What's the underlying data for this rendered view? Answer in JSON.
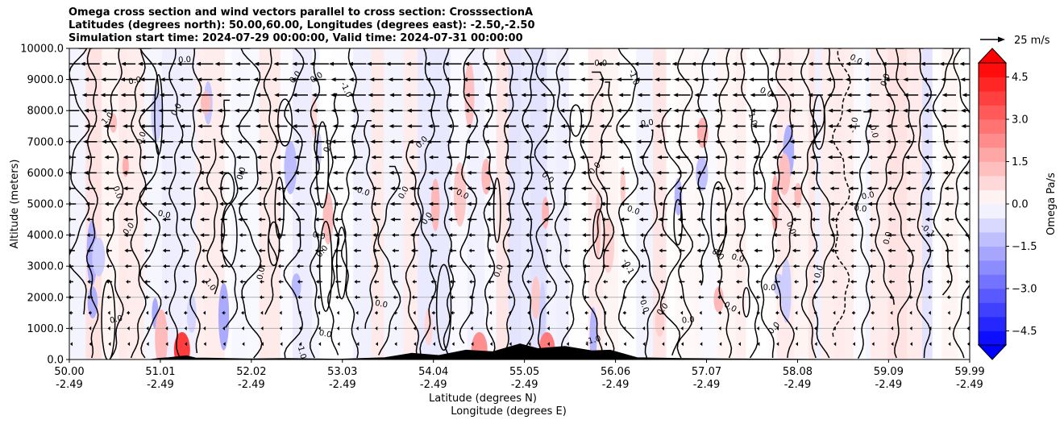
{
  "chart_data": {
    "type": "heatmap",
    "title_lines": [
      "Omega cross section and wind vectors parallel to cross section: CrosssectionA",
      "Latitudes (degrees north): 50.00,60.00, Longitudes (degrees east): -2.50,-2.50",
      "Simulation start time: 2024-07-29 00:00:00, Valid time: 2024-07-31 00:00:00"
    ],
    "ylabel": "Altitude (meters)",
    "xlabel_primary": "Latitude (degrees N)",
    "xlabel_secondary": "Longitude (degrees E)",
    "xlim": [
      50.0,
      59.99
    ],
    "ylim": [
      0,
      10000
    ],
    "x_ticks": [
      {
        "lat": 50.0,
        "lat_label": "50.00",
        "lon_label": "-2.49"
      },
      {
        "lat": 51.01,
        "lat_label": "51.01",
        "lon_label": "-2.49"
      },
      {
        "lat": 52.02,
        "lat_label": "52.02",
        "lon_label": "-2.49"
      },
      {
        "lat": 53.03,
        "lat_label": "53.03",
        "lon_label": "-2.49"
      },
      {
        "lat": 54.04,
        "lat_label": "54.04",
        "lon_label": "-2.49"
      },
      {
        "lat": 55.05,
        "lat_label": "55.05",
        "lon_label": "-2.49"
      },
      {
        "lat": 56.06,
        "lat_label": "56.06",
        "lon_label": "-2.49"
      },
      {
        "lat": 57.07,
        "lat_label": "57.07",
        "lon_label": "-2.49"
      },
      {
        "lat": 58.08,
        "lat_label": "58.08",
        "lon_label": "-2.49"
      },
      {
        "lat": 59.09,
        "lat_label": "59.09",
        "lon_label": "-2.49"
      },
      {
        "lat": 59.99,
        "lat_label": "59.99",
        "lon_label": "-2.49"
      }
    ],
    "y_ticks": [
      {
        "value": 0,
        "label": "0.0"
      },
      {
        "value": 1000,
        "label": "1000.0"
      },
      {
        "value": 2000,
        "label": "2000.0"
      },
      {
        "value": 3000,
        "label": "3000.0"
      },
      {
        "value": 4000,
        "label": "4000.0"
      },
      {
        "value": 5000,
        "label": "5000.0"
      },
      {
        "value": 6000,
        "label": "6000.0"
      },
      {
        "value": 7000,
        "label": "7000.0"
      },
      {
        "value": 8000,
        "label": "8000.0"
      },
      {
        "value": 9000,
        "label": "9000.0"
      },
      {
        "value": 10000,
        "label": "10000.0"
      }
    ],
    "grid": "horizontal",
    "colorbar": {
      "label": "Omega Pa/s",
      "range": [
        -5.0,
        5.0
      ],
      "extend": "both",
      "ticks": [
        {
          "value": 4.5,
          "label": "4.5"
        },
        {
          "value": 3.0,
          "label": "3.0"
        },
        {
          "value": 1.5,
          "label": "1.5"
        },
        {
          "value": 0.0,
          "label": "0.0"
        },
        {
          "value": -1.5,
          "label": "−1.5"
        },
        {
          "value": -3.0,
          "label": "−3.0"
        },
        {
          "value": -4.5,
          "label": "−4.5"
        }
      ],
      "low_color": "#0000ff",
      "zero_color": "#ffffff",
      "high_color": "#ff0000"
    },
    "quiver_key": {
      "label": "25 m/s",
      "speed": 25
    },
    "wind_pattern": {
      "description": "Northerly-component winds pointing toward lower latitude (left), strongest aloft",
      "levels_m": [
        500,
        1000,
        1500,
        2000,
        2500,
        3000,
        3500,
        4000,
        4500,
        5000,
        5500,
        6000,
        6500,
        7000,
        7500,
        8000,
        8500,
        9000,
        9500
      ],
      "u_parallel_ms": [
        -1,
        -1.5,
        -2,
        -3,
        -3.5,
        -4,
        -4.5,
        -5,
        -5.5,
        -6,
        -6.5,
        -7,
        -7.5,
        -8,
        -8.5,
        -9,
        -9.5,
        -10,
        -11
      ]
    },
    "terrain": {
      "description": "Orography along the section near the surface",
      "points": [
        [
          50.0,
          0
        ],
        [
          50.9,
          0
        ],
        [
          51.0,
          40
        ],
        [
          51.1,
          60
        ],
        [
          51.3,
          120
        ],
        [
          51.4,
          50
        ],
        [
          52.0,
          20
        ],
        [
          52.4,
          30
        ],
        [
          53.0,
          10
        ],
        [
          53.5,
          60
        ],
        [
          53.8,
          200
        ],
        [
          54.1,
          130
        ],
        [
          54.4,
          300
        ],
        [
          54.7,
          250
        ],
        [
          55.0,
          500
        ],
        [
          55.2,
          350
        ],
        [
          55.5,
          420
        ],
        [
          55.8,
          280
        ],
        [
          56.0,
          300
        ],
        [
          56.3,
          60
        ],
        [
          56.8,
          30
        ],
        [
          57.3,
          20
        ],
        [
          58.0,
          10
        ],
        [
          58.5,
          0
        ],
        [
          59.99,
          0
        ]
      ]
    },
    "contour_label_values": [
      "0.0",
      "-1.0",
      "-0.1",
      "1.0"
    ]
  }
}
